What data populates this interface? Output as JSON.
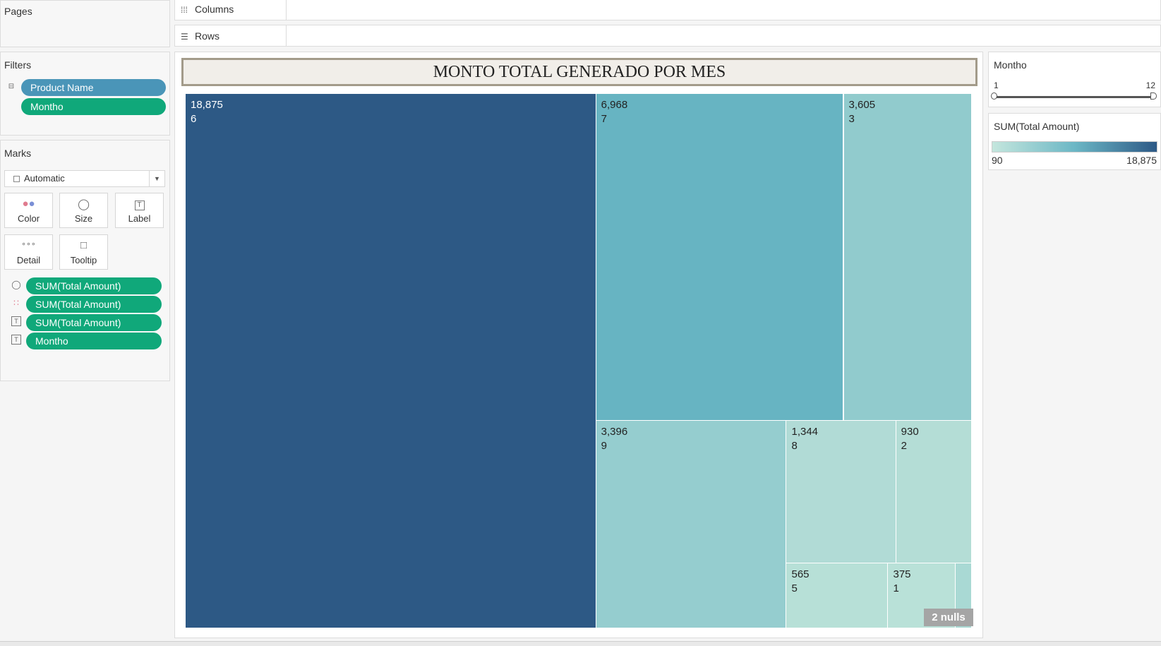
{
  "pages": {
    "title": "Pages"
  },
  "shelves": {
    "columns": {
      "icon": "columns-icon",
      "label": "Columns"
    },
    "rows": {
      "icon": "rows-icon",
      "label": "Rows"
    }
  },
  "filters": {
    "title": "Filters",
    "pills": [
      {
        "label": "Product Name",
        "color": "#4a95b8"
      },
      {
        "label": "Montho",
        "color": "#10a87a"
      }
    ]
  },
  "marks": {
    "title": "Marks",
    "type_select": "Automatic",
    "buttons": [
      {
        "icon": "color-icon",
        "label": "Color"
      },
      {
        "icon": "size-icon",
        "label": "Size"
      },
      {
        "icon": "label-icon",
        "label": "Label"
      },
      {
        "icon": "detail-icon",
        "label": "Detail"
      },
      {
        "icon": "tooltip-icon",
        "label": "Tooltip"
      }
    ],
    "cards": [
      {
        "icon": "size-icon",
        "label": "SUM(Total Amount)"
      },
      {
        "icon": "color-icon",
        "label": "SUM(Total Amount)"
      },
      {
        "icon": "label-icon",
        "label": "SUM(Total Amount)"
      },
      {
        "icon": "label-icon",
        "label": "Montho"
      }
    ]
  },
  "view": {
    "title": "MONTO TOTAL GENERADO POR MES",
    "nulls_badge": "2 nulls"
  },
  "legends": {
    "filter": {
      "title": "Montho",
      "min": "1",
      "max": "12"
    },
    "color": {
      "title": "SUM(Total Amount)",
      "min": "90",
      "max": "18,875",
      "color_low": "#c4e6dd",
      "color_high": "#2d5986"
    }
  },
  "chart_data": {
    "type": "treemap",
    "title": "MONTO TOTAL GENERADO POR MES",
    "cells": [
      {
        "value_label": "18,875",
        "month": "6",
        "value": 18875,
        "color": "#2d5985"
      },
      {
        "value_label": "6,968",
        "month": "7",
        "value": 6968,
        "color": "#67b4c2"
      },
      {
        "value_label": "3,605",
        "month": "3",
        "value": 3605,
        "color": "#91cbcd"
      },
      {
        "value_label": "3,396",
        "month": "9",
        "value": 3396,
        "color": "#95cdcf"
      },
      {
        "value_label": "1,344",
        "month": "8",
        "value": 1344,
        "color": "#b1dbd6"
      },
      {
        "value_label": "930",
        "month": "2",
        "value": 930,
        "color": "#b4ddd6"
      },
      {
        "value_label": "565",
        "month": "5",
        "value": 565,
        "color": "#b7e0d7"
      },
      {
        "value_label": "375",
        "month": "1",
        "value": 375,
        "color": "#b9e1d8"
      },
      {
        "value_label": "",
        "month": "",
        "value": 90,
        "color": "#a9d9d4"
      }
    ]
  }
}
